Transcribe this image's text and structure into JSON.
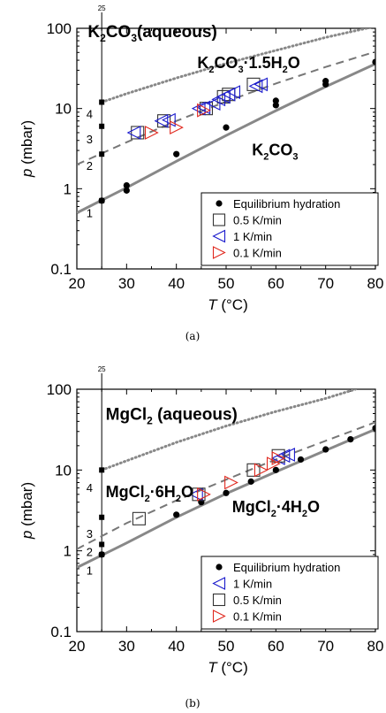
{
  "chart_data": [
    {
      "type": "scatter",
      "panel": "a",
      "caption": "(a)",
      "xlabel_italic": "T",
      "xlabel_rest": " (°C)",
      "ylabel_italic": "p",
      "ylabel_rest": " (mbar)",
      "xlim": [
        20,
        80
      ],
      "ylim": [
        0.1,
        100
      ],
      "yscale": "log",
      "xticks": [
        20,
        30,
        40,
        50,
        60,
        70,
        80
      ],
      "yticks": [
        {
          "value": 0.1,
          "label": "0.1"
        },
        {
          "value": 1,
          "label": "1"
        },
        {
          "value": 10,
          "label": "10"
        },
        {
          "value": 100,
          "label": "100"
        }
      ],
      "vline_x": 25,
      "vline_label": "25",
      "phase_labels": [
        {
          "parts": [
            [
              "K",
              ""
            ],
            [
              "2",
              "sub"
            ],
            [
              "CO",
              ""
            ],
            [
              "3",
              "sub"
            ],
            [
              "(aqueous)",
              ""
            ]
          ],
          "x": 22.2,
          "y": 78,
          "size": 19
        },
        {
          "parts": [
            [
              "K",
              ""
            ],
            [
              "2",
              "sub"
            ],
            [
              "CO",
              ""
            ],
            [
              "3",
              "sub"
            ],
            [
              "·1.5H",
              ""
            ],
            [
              "2",
              "sub"
            ],
            [
              "O",
              ""
            ]
          ],
          "x": 44.2,
          "y": 32,
          "size": 18
        },
        {
          "parts": [
            [
              "K",
              ""
            ],
            [
              "2",
              "sub"
            ],
            [
              "CO",
              ""
            ],
            [
              "3",
              "sub"
            ]
          ],
          "x": 55.2,
          "y": 2.6,
          "size": 18
        }
      ],
      "point_labels": [
        {
          "text": "1",
          "x": 22.2,
          "y": 0.5
        },
        {
          "text": "2",
          "x": 22.2,
          "y": 1.95
        },
        {
          "text": "3",
          "x": 22.2,
          "y": 4.2
        },
        {
          "text": "4",
          "x": 22.2,
          "y": 8.6
        }
      ],
      "vline_points": [
        {
          "x": 25,
          "y": 0.71
        },
        {
          "x": 25,
          "y": 2.7
        },
        {
          "x": 25,
          "y": 6.0
        },
        {
          "x": 25,
          "y": 12.0
        }
      ],
      "curves": [
        {
          "style": "dotted",
          "color": "#888888",
          "points": [
            [
              25,
              12
            ],
            [
              30,
              15.3
            ],
            [
              40,
              24
            ],
            [
              50,
              36.5
            ],
            [
              60,
              53
            ],
            [
              70,
              77
            ],
            [
              80,
              106
            ]
          ]
        },
        {
          "style": "dashed",
          "color": "#777777",
          "points": [
            [
              20,
              2.0
            ],
            [
              30,
              3.8
            ],
            [
              40,
              7.0
            ],
            [
              50,
              12.2
            ],
            [
              60,
              20.5
            ],
            [
              70,
              33
            ],
            [
              80,
              51
            ]
          ]
        },
        {
          "style": "solid",
          "color": "#888888",
          "points": [
            [
              20,
              0.5
            ],
            [
              25,
              0.72
            ],
            [
              30,
              1.03
            ],
            [
              40,
              2.2
            ],
            [
              50,
              4.6
            ],
            [
              60,
              9.4
            ],
            [
              70,
              18.7
            ],
            [
              80,
              36
            ]
          ]
        }
      ],
      "series": [
        {
          "name": "Equilibrium hydration",
          "marker": "dot",
          "color": "#000000",
          "x": [
            25,
            30,
            30,
            40,
            50,
            60,
            60,
            70,
            70,
            80
          ],
          "y": [
            0.71,
            1.1,
            0.95,
            2.7,
            5.8,
            11,
            12.5,
            20,
            22,
            38
          ]
        },
        {
          "name": "0.5 K/min",
          "marker": "square",
          "color": "#333333",
          "x": [
            32.2,
            37.5,
            46,
            49.5,
            50.5,
            55.5
          ],
          "y": [
            5,
            7,
            10,
            14,
            15,
            20
          ]
        },
        {
          "name": "1 K/min",
          "marker": "tri-left",
          "color": "#1a1acc",
          "x": [
            31.5,
            37,
            38.5,
            44.5,
            45.5,
            47.5,
            48.5,
            49.5,
            50.5,
            51.5,
            56,
            57
          ],
          "y": [
            5,
            7,
            7.2,
            10,
            10.3,
            11.5,
            13,
            14,
            15,
            16,
            19,
            20
          ]
        },
        {
          "name": "0.1 K/min",
          "marker": "tri-right",
          "color": "#e0281e",
          "x": [
            35,
            40,
            45.5
          ],
          "y": [
            5,
            5.8,
            9.5
          ]
        }
      ],
      "legend": {
        "position": "lower-right",
        "order": [
          0,
          1,
          2,
          3
        ]
      }
    },
    {
      "type": "scatter",
      "panel": "b",
      "caption": "(b)",
      "xlabel_italic": "T",
      "xlabel_rest": " (°C)",
      "ylabel_italic": "p",
      "ylabel_rest": " (mbar)",
      "xlim": [
        20,
        80
      ],
      "ylim": [
        0.1,
        100
      ],
      "yscale": "log",
      "xticks": [
        20,
        30,
        40,
        50,
        60,
        70,
        80
      ],
      "yticks": [
        {
          "value": 0.1,
          "label": "0.1"
        },
        {
          "value": 1,
          "label": "1"
        },
        {
          "value": 10,
          "label": "10"
        },
        {
          "value": 100,
          "label": "100"
        }
      ],
      "vline_x": 25,
      "vline_label": "25",
      "phase_labels": [
        {
          "parts": [
            [
              "MgCl",
              ""
            ],
            [
              "2",
              "sub"
            ],
            [
              " (aqueous)",
              ""
            ]
          ],
          "x": 25.8,
          "y": 42,
          "size": 19
        },
        {
          "parts": [
            [
              "MgCl",
              ""
            ],
            [
              "2",
              "sub"
            ],
            [
              "·6H",
              ""
            ],
            [
              "2",
              "sub"
            ],
            [
              "O",
              ""
            ]
          ],
          "x": 25.8,
          "y": 4.6,
          "size": 18
        },
        {
          "parts": [
            [
              "MgCl",
              ""
            ],
            [
              "2",
              "sub"
            ],
            [
              "·4H",
              ""
            ],
            [
              "2",
              "sub"
            ],
            [
              "O",
              ""
            ]
          ],
          "x": 51.2,
          "y": 3.0,
          "size": 18
        }
      ],
      "point_labels": [
        {
          "text": "1",
          "x": 22.2,
          "y": 0.58
        },
        {
          "text": "2",
          "x": 22.2,
          "y": 0.98
        },
        {
          "text": "3",
          "x": 22.2,
          "y": 1.65
        },
        {
          "text": "4",
          "x": 22.2,
          "y": 6.1
        }
      ],
      "vline_points": [
        {
          "x": 25,
          "y": 0.9
        },
        {
          "x": 25,
          "y": 1.2
        },
        {
          "x": 25,
          "y": 2.6
        },
        {
          "x": 25,
          "y": 10
        }
      ],
      "curves": [
        {
          "style": "dotted",
          "color": "#888888",
          "points": [
            [
              25,
              10
            ],
            [
              30,
              13
            ],
            [
              40,
              22
            ],
            [
              50,
              35
            ],
            [
              60,
              53
            ],
            [
              70,
              77
            ],
            [
              76,
              100
            ]
          ]
        },
        {
          "style": "dashed",
          "color": "#777777",
          "points": [
            [
              20,
              1.05
            ],
            [
              30,
              2.2
            ],
            [
              40,
              4.2
            ],
            [
              50,
              7.6
            ],
            [
              60,
              13.5
            ],
            [
              70,
              23
            ],
            [
              80,
              39
            ]
          ]
        },
        {
          "style": "solid",
          "color": "#888888",
          "points": [
            [
              20,
              0.62
            ],
            [
              25,
              0.88
            ],
            [
              30,
              1.25
            ],
            [
              40,
              2.6
            ],
            [
              50,
              5.1
            ],
            [
              60,
              9.5
            ],
            [
              70,
              17.5
            ],
            [
              80,
              32
            ]
          ]
        }
      ],
      "series": [
        {
          "name": "Equilibrium hydration",
          "marker": "dot",
          "color": "#000000",
          "x": [
            25,
            40,
            45,
            50,
            55,
            60,
            65,
            70,
            75,
            80
          ],
          "y": [
            0.9,
            2.8,
            4.0,
            5.2,
            7.2,
            10,
            13.5,
            18,
            24,
            33
          ]
        },
        {
          "name": "1 K/min",
          "marker": "tri-left",
          "color": "#1a1acc",
          "x": [
            44,
            60.5,
            61.5,
            62.5
          ],
          "y": [
            5,
            14,
            15,
            15.5
          ]
        },
        {
          "name": "0.5 K/min",
          "marker": "square",
          "color": "#333333",
          "x": [
            32.5,
            44.5,
            55.5,
            60.5
          ],
          "y": [
            2.5,
            5,
            10,
            15
          ]
        },
        {
          "name": "0.1 K/min",
          "marker": "tri-right",
          "color": "#e0281e",
          "x": [
            45.5,
            51,
            57,
            59.5,
            60.5
          ],
          "y": [
            5,
            7,
            10,
            12,
            14
          ]
        }
      ],
      "legend": {
        "position": "lower-right",
        "order": [
          0,
          1,
          2,
          3
        ]
      }
    }
  ]
}
